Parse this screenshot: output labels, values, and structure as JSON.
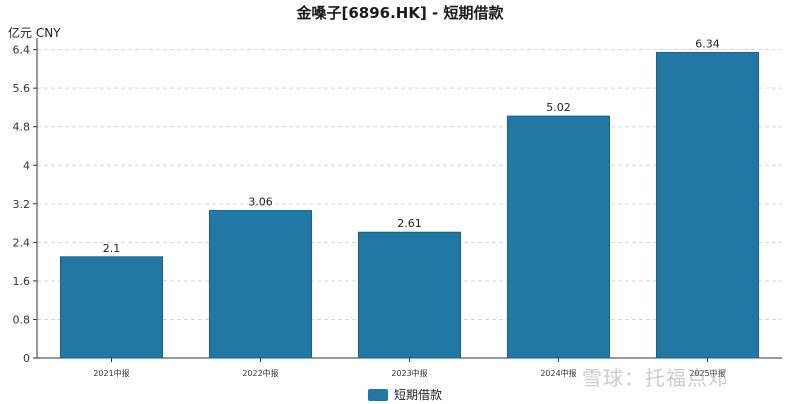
{
  "chart_data": {
    "type": "bar",
    "title": "金嗓子[6896.HK] - 短期借款",
    "unit_label": "亿元  CNY",
    "categories": [
      "2021中报",
      "2022中报",
      "2023中报",
      "2024中报",
      "2025中报"
    ],
    "series": [
      {
        "name": "短期借款",
        "values": [
          2.1,
          3.06,
          2.61,
          5.02,
          6.34
        ]
      }
    ],
    "value_labels": [
      "2.1",
      "3.06",
      "2.61",
      "5.02",
      "6.34"
    ],
    "yticks": [
      "0",
      "0.8",
      "1.6",
      "2.4",
      "3.2",
      "4",
      "4.8",
      "5.6",
      "6.4"
    ],
    "ylim": [
      0,
      6.6
    ],
    "grid": true,
    "legend_position": "bottom-center",
    "bar_color": "#2278a5",
    "bar_edge_color": "#1b5f85"
  },
  "watermark": "雪球：托福点邓"
}
